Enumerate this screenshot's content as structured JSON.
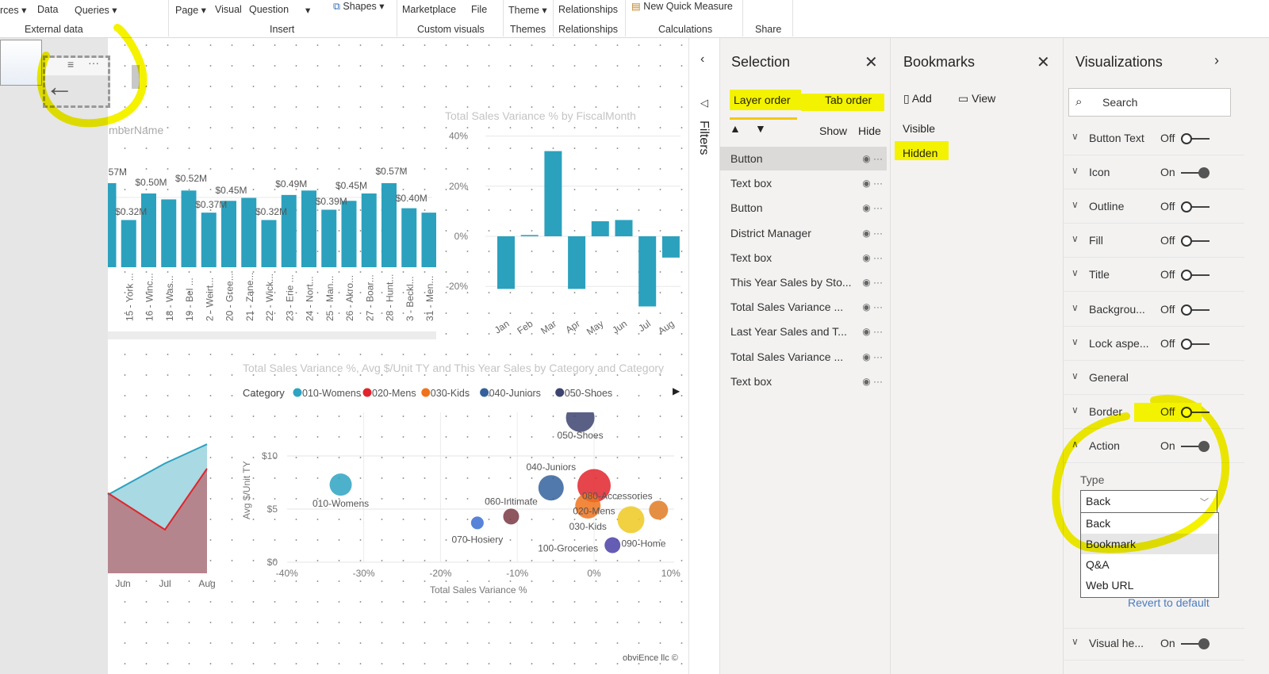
{
  "ribbon": {
    "buttons": [
      "rces ▾",
      "Data",
      "Queries ▾",
      "Page ▾",
      "Visual",
      "Question",
      "▾",
      "Shapes ▾",
      "Marketplace",
      "File",
      "Theme ▾",
      "Relationships",
      "New Quick Measure"
    ],
    "groups": [
      "External data",
      "Insert",
      "Custom visuals",
      "Themes",
      "Relationships",
      "Calculations",
      "Share"
    ]
  },
  "canvas": {
    "partial_title": "mberName",
    "bar_chart": {
      "type": "bar",
      "title": "",
      "categories": [
        "",
        "15 - York ...",
        "16 - Winc...",
        "18 - Was...",
        "19 - Bel ...",
        "2 - Weirt...",
        "20 - Gree...",
        "21 - Zane...",
        "22 - Wick...",
        "23 - Erie ...",
        "24 - Nort...",
        "25 - Man...",
        "26 - Akro...",
        "27 - Boar...",
        "28 - Hunt...",
        "3 - Beckl...",
        "31 - Men..."
      ],
      "values": [
        0.57,
        0.32,
        0.5,
        0.46,
        0.52,
        0.37,
        0.45,
        0.47,
        0.32,
        0.49,
        0.52,
        0.39,
        0.45,
        0.5,
        0.57,
        0.4,
        0.37
      ],
      "data_labels": [
        "$0.57M",
        "$0.32M",
        "$0.50M",
        "",
        "$0.52M",
        "$0.37M",
        "$0.45M",
        "",
        "$0.32M",
        "$0.49M",
        "",
        "$0.39M",
        "$0.45M",
        "",
        "$0.57M",
        "$0.40M",
        ""
      ],
      "color": "#2ba1be"
    },
    "variance_chart": {
      "type": "bar",
      "title": "Total Sales Variance % by FiscalMonth",
      "categories": [
        "Jan",
        "Feb",
        "Mar",
        "Apr",
        "May",
        "Jun",
        "Jul",
        "Aug"
      ],
      "values": [
        -21,
        0.5,
        34,
        -21,
        6,
        6.5,
        -28,
        -8.5
      ],
      "ylim": [
        -30,
        40
      ],
      "yticks": [
        "40%",
        "20%",
        "0%",
        "-20%"
      ],
      "color": "#2ba1be"
    },
    "line_chart": {
      "type": "area",
      "categories": [
        "Jun",
        "Jul",
        "Aug"
      ],
      "series": [
        {
          "color": "#e1242b",
          "values": [
            6.2,
            4.1,
            7.6
          ]
        },
        {
          "color": "#2ba1be",
          "values": [
            6.1,
            7.9,
            9.0
          ]
        }
      ]
    },
    "scatter_chart": {
      "type": "scatter",
      "title": "Total Sales Variance %, Avg $/Unit TY and This Year Sales by Category and Category",
      "xlabel": "Total Sales Variance %",
      "ylabel": "Avg $/Unit TY",
      "xlim": [
        -40,
        10
      ],
      "ylim": [
        0,
        13.5
      ],
      "xticks": [
        "-40%",
        "-30%",
        "-20%",
        "-10%",
        "0%",
        "10%"
      ],
      "yticks": [
        "$10",
        "$5",
        "$0"
      ],
      "legend_title": "Category",
      "legend": [
        {
          "name": "010-Womens",
          "color": "#2ea3c2"
        },
        {
          "name": "020-Mens",
          "color": "#e1242b"
        },
        {
          "name": "030-Kids",
          "color": "#f0731c"
        },
        {
          "name": "040-Juniors",
          "color": "#34619c"
        },
        {
          "name": "050-Shoes",
          "color": "#3d4470"
        }
      ],
      "points": [
        {
          "name": "010-Womens",
          "x": -33,
          "y": 7.3,
          "size": 14,
          "color": "#2ea3c2"
        },
        {
          "name": "050-Shoes",
          "x": -1.8,
          "y": 13.6,
          "size": 18,
          "color": "#3d4470"
        },
        {
          "name": "040-Juniors",
          "x": -5.6,
          "y": 7.0,
          "size": 16,
          "color": "#34619c"
        },
        {
          "name": "020-Mens",
          "x": 0,
          "y": 7.2,
          "size": 21,
          "color": "#e1242b"
        },
        {
          "name": "030-Kids",
          "x": -0.8,
          "y": 5.3,
          "size": 16,
          "color": "#f0731c"
        },
        {
          "name": "080-Accessories",
          "x": 8.4,
          "y": 4.9,
          "size": 12,
          "color": "#e07b24"
        },
        {
          "name": "060-Intimate",
          "x": -10.8,
          "y": 4.3,
          "size": 10,
          "color": "#7a3843"
        },
        {
          "name": "070-Hosiery",
          "x": -15.2,
          "y": 3.7,
          "size": 8,
          "color": "#3a6ed1"
        },
        {
          "name": "090-Home",
          "x": 4.8,
          "y": 4.0,
          "size": 17,
          "color": "#efc921"
        },
        {
          "name": "100-Groceries",
          "x": 2.4,
          "y": 1.6,
          "size": 10,
          "color": "#4a3fa6"
        }
      ]
    },
    "footer_partial": "obviEnce llc ©"
  },
  "filters": {
    "label": "Filters"
  },
  "selection": {
    "title": "Selection",
    "tabs": [
      "Layer order",
      "Tab order"
    ],
    "show": "Show",
    "hide": "Hide",
    "items": [
      "Button",
      "Text box",
      "Button",
      "District Manager",
      "Text box",
      "This Year Sales by Sto...",
      "Total Sales Variance ...",
      "Last Year Sales and T...",
      "Total Sales Variance ...",
      "Text box"
    ]
  },
  "bookmarks": {
    "title": "Bookmarks",
    "add": "Add",
    "view": "View",
    "items": [
      "Visible",
      "Hidden"
    ]
  },
  "visualizations": {
    "title": "Visualizations",
    "search_placeholder": "Search",
    "rows": [
      {
        "label": "Button Text",
        "state": "Off"
      },
      {
        "label": "Icon",
        "state": "On"
      },
      {
        "label": "Outline",
        "state": "Off"
      },
      {
        "label": "Fill",
        "state": "Off"
      },
      {
        "label": "Title",
        "state": "Off"
      },
      {
        "label": "Backgrou...",
        "state": "Off"
      },
      {
        "label": "Lock aspe...",
        "state": "Off"
      },
      {
        "label": "General",
        "state": ""
      },
      {
        "label": "Border",
        "state": "Off"
      },
      {
        "label": "Action",
        "state": "On"
      }
    ],
    "type_label": "Type",
    "type_value": "Back",
    "type_options": [
      "Back",
      "Bookmark",
      "Q&A",
      "Web URL"
    ],
    "revert": "Revert to default",
    "visual_header": {
      "label": "Visual he...",
      "state": "On"
    }
  }
}
